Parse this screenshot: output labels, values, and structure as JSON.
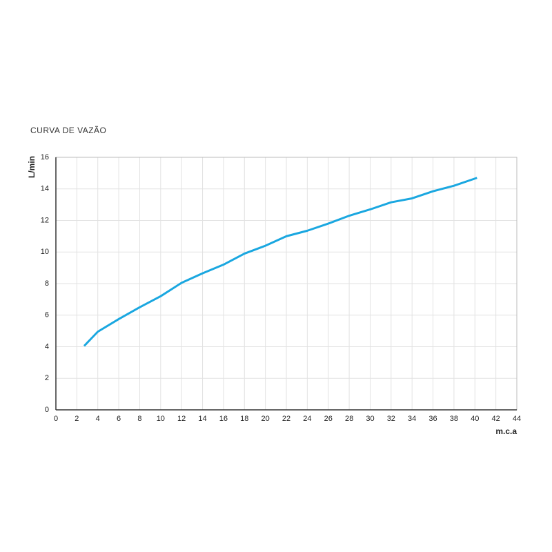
{
  "chart_data": {
    "type": "line",
    "title": "CURVA DE VAZÃO",
    "x_label": "m.c.a",
    "y_label": "L/min",
    "x": [
      2.7,
      4,
      6,
      8,
      10,
      12,
      14,
      16,
      18,
      20,
      22,
      24,
      26,
      28,
      30,
      32,
      34,
      36,
      38,
      40.2
    ],
    "series": [
      {
        "color": "#1aa7e0",
        "values": [
          4.05,
          4.95,
          5.75,
          6.5,
          7.2,
          8.05,
          8.65,
          9.2,
          9.9,
          10.4,
          11.0,
          11.35,
          11.8,
          12.3,
          12.7,
          13.15,
          13.4,
          13.85,
          14.2,
          14.7
        ]
      }
    ],
    "xlim": [
      0,
      44
    ],
    "xticks": [
      0,
      2,
      4,
      6,
      8,
      10,
      12,
      14,
      16,
      18,
      20,
      22,
      24,
      26,
      28,
      30,
      32,
      34,
      36,
      38,
      40,
      42,
      44
    ],
    "ylim": [
      0,
      16
    ],
    "yticks": [
      0,
      2,
      4,
      6,
      8,
      10,
      12,
      14,
      16
    ],
    "grid": true
  }
}
